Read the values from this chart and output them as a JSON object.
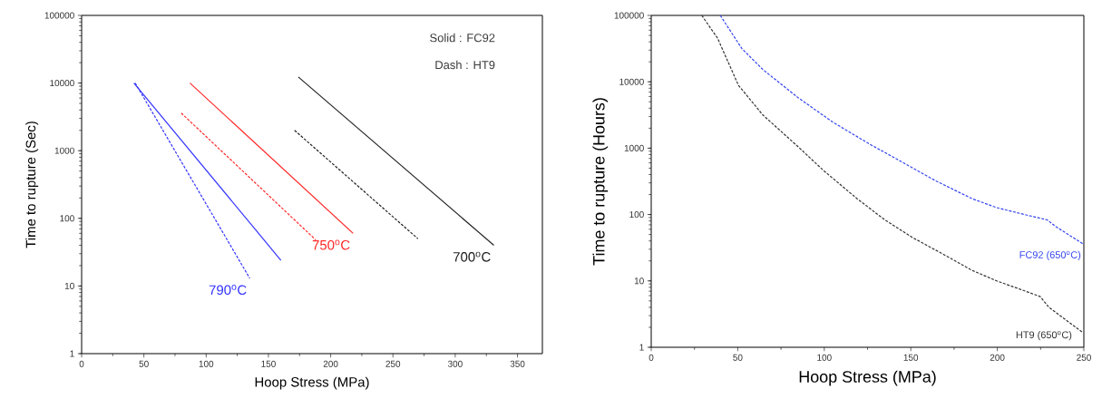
{
  "chart_data": [
    {
      "type": "line",
      "xlabel": "Hoop Stress (MPa)",
      "ylabel": "Time to rupture (Sec)",
      "log": "y",
      "grid": false,
      "legend": false,
      "marker": "none",
      "xlim": [
        0,
        370
      ],
      "ylim": [
        1,
        100000
      ],
      "xticks": [
        0,
        50,
        100,
        150,
        200,
        250,
        300,
        350
      ],
      "yticks": [
        1,
        10,
        100,
        1000,
        10000,
        100000
      ],
      "series": [
        {
          "name": "700$^{o}$C",
          "color": "#222222",
          "line_style": "solid",
          "x": [
            174,
            331
          ],
          "values": [
            12300,
            40
          ]
        },
        {
          "color": "#222222",
          "line_style": "dashed",
          "x": [
            171,
            270
          ],
          "values": [
            2000,
            50
          ]
        },
        {
          "name": "750$^{o}$C",
          "color": "#ff2a2a",
          "line_style": "solid",
          "x": [
            87,
            218
          ],
          "values": [
            10000,
            60
          ]
        },
        {
          "color": "#ff2a2a",
          "line_style": "dashed",
          "x": [
            80,
            188
          ],
          "values": [
            3600,
            48
          ]
        },
        {
          "color": "#3333ff",
          "line_style": "solid",
          "x": [
            42,
            160
          ],
          "values": [
            10000,
            24
          ]
        },
        {
          "name": "790$^{o}$C",
          "color": "#3333ff",
          "line_style": "dashed",
          "x": [
            43,
            135
          ],
          "values": [
            10000,
            13
          ]
        }
      ],
      "annotations": [
        "Solid : FC92",
        "Dash : HT9"
      ]
    },
    {
      "type": "line",
      "xlabel": "Hoop Stress (MPa)",
      "ylabel": "Time to rupture (Hours)",
      "log": "y",
      "grid": false,
      "legend": false,
      "marker": "none",
      "xlim": [
        0,
        250
      ],
      "ylim": [
        1,
        100000
      ],
      "xticks": [
        0,
        50,
        100,
        150,
        200,
        250
      ],
      "yticks": [
        1,
        10,
        100,
        1000,
        10000,
        100000
      ],
      "series": [
        {
          "name": "FC92 (650$^{o}$C)",
          "color": "#3344ee",
          "line_style": "dashed",
          "x": [
            39.9,
            52.4,
            64.5,
            84.7,
            104.8,
            125,
            145,
            165,
            185.5,
            199.6,
            215.7,
            228.8,
            233.9,
            250
          ],
          "values": [
            100000,
            31600,
            15300,
            5800,
            2480,
            1200,
            616,
            316,
            173,
            127,
            100,
            83,
            65.5,
            35.5
          ]
        },
        {
          "name": "HT9 (650$^{o}$C)",
          "color": "#333333",
          "line_style": "dashed",
          "x": [
            29.2,
            38.3,
            50.4,
            64.5,
            84.7,
            99.8,
            119,
            135,
            151,
            169,
            185.5,
            199.6,
            213.7,
            224.8,
            229.8,
            249
          ],
          "values": [
            100000,
            45500,
            8850,
            3162,
            1060,
            455,
            173,
            83,
            45,
            25,
            14.4,
            10,
            7.4,
            5.8,
            4.0,
            1.7
          ]
        }
      ]
    }
  ]
}
